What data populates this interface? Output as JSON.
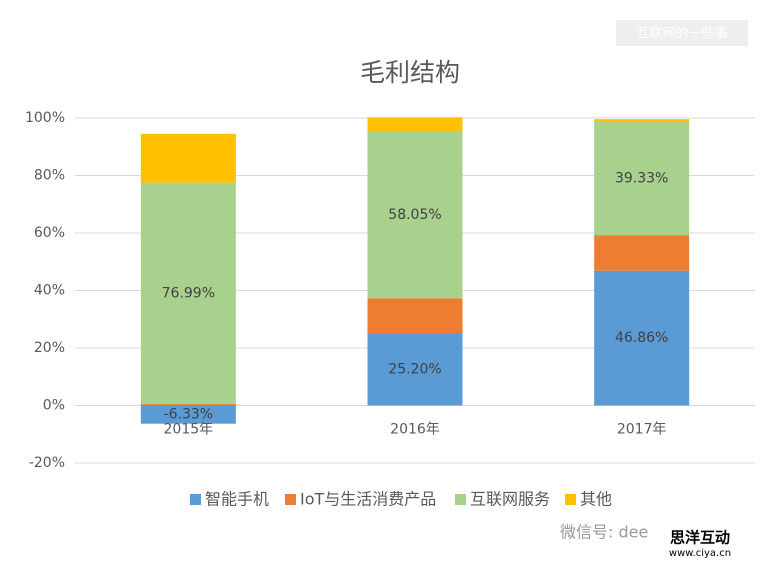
{
  "chart_data": {
    "type": "stacked_bar",
    "title": "毛利结构",
    "categories": [
      "2015年",
      "2016年",
      "2017年"
    ],
    "series": [
      {
        "name": "智能手机",
        "color": "#5b9bd5",
        "values": [
          -6.33,
          25.2,
          46.86
        ],
        "value_labels": [
          "-6.33%",
          "25.20%",
          "46.86%"
        ]
      },
      {
        "name": "IoT与生活消费产品",
        "color": "#ed7d31",
        "values": [
          0.5,
          12.1,
          12.4
        ],
        "value_labels": [
          null,
          null,
          null
        ]
      },
      {
        "name": "互联网服务",
        "color": "#a9d18e",
        "values": [
          76.99,
          58.05,
          39.33
        ],
        "value_labels": [
          "76.99%",
          "58.05%",
          "39.33%"
        ]
      },
      {
        "name": "其他",
        "color": "#ffc000",
        "values": [
          17,
          4.9,
          1
        ],
        "value_labels": [
          null,
          null,
          null
        ]
      }
    ],
    "ylim": [
      -20,
      100
    ],
    "yticks": [
      {
        "value": -20,
        "label": "-20%"
      },
      {
        "value": 0,
        "label": "0%"
      },
      {
        "value": 20,
        "label": "20%"
      },
      {
        "value": 40,
        "label": "40%"
      },
      {
        "value": 60,
        "label": "60%"
      },
      {
        "value": 80,
        "label": "80%"
      },
      {
        "value": 100,
        "label": "100%"
      }
    ],
    "grid": true,
    "legend": "bottom"
  },
  "watermarks": [
    "互联网的一些事",
    "微信号: dee",
    "思洋互动",
    "www.ciya.cn"
  ]
}
